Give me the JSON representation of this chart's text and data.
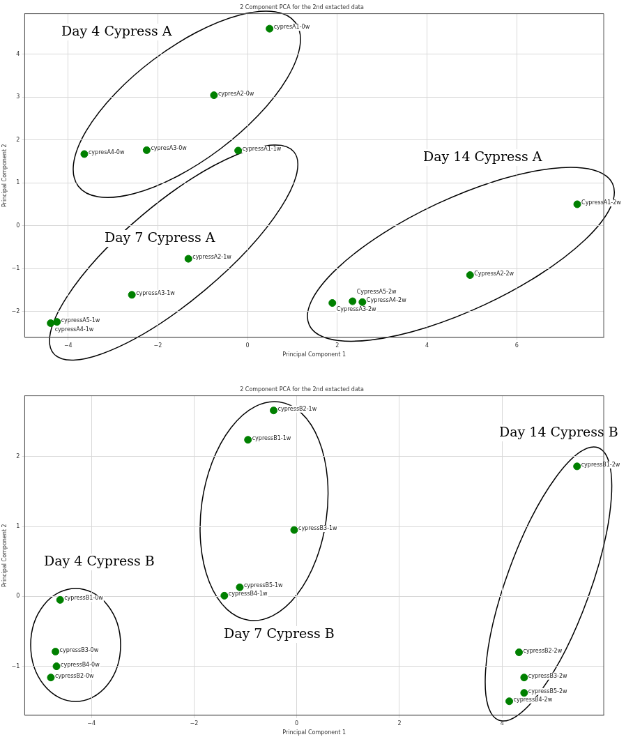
{
  "chart_data": [
    {
      "type": "scatter",
      "title": "2 Component PCA for the 2nd extacted data",
      "xlabel": "Principal Component 1",
      "ylabel": "Principal Component 2",
      "xlim": [
        -4.97,
        7.94
      ],
      "ylim": [
        -2.6,
        4.94
      ],
      "xticks": [
        -4,
        -2,
        0,
        2,
        4,
        6
      ],
      "yticks": [
        -2,
        -1,
        0,
        1,
        2,
        3,
        4
      ],
      "grid": true,
      "marker": "circle",
      "series": [
        {
          "color": "#008000",
          "x": [
            0.49,
            -0.75,
            -2.25,
            -3.64,
            -0.21,
            -1.32,
            -2.58,
            -4.39,
            -4.25,
            7.35,
            4.96,
            1.89,
            2.34,
            2.56
          ],
          "values": [
            4.59,
            3.04,
            1.76,
            1.67,
            1.75,
            -0.77,
            -1.61,
            -2.27,
            -2.24,
            0.5,
            -1.15,
            -1.8,
            -1.76,
            -1.78
          ],
          "value_labels": [
            "cypresA1-0w",
            "cypresA2-0w",
            "cypresA3-0w",
            "cypresA4-0w",
            "cypressA1-1w",
            "cypressA2-1w",
            "cypressA3-1w",
            "cypressA4-1w",
            "cypressA5-1w",
            "CypressA1-2w",
            "CypressA2-2w",
            "CypressA3-2w",
            "CypressA5-2w",
            "CypressA4-2w"
          ]
        }
      ],
      "annotations": [
        "Day 4 Cypress A",
        "Day 7 Cypress A",
        "Day 14 Cypress A"
      ]
    },
    {
      "type": "scatter",
      "title": "2 Component PCA for the 2nd extacted data",
      "xlabel": "Principal Component 1",
      "ylabel": "Principal Component 2",
      "xlim": [
        -5.3,
        5.98
      ],
      "ylim": [
        -1.7,
        2.87
      ],
      "xticks": [
        -4,
        -2,
        0,
        2,
        4
      ],
      "yticks": [
        -1,
        0,
        1,
        2
      ],
      "grid": true,
      "marker": "circle",
      "series": [
        {
          "color": "#008000",
          "x": [
            -4.61,
            -4.7,
            -4.68,
            -4.79,
            -0.45,
            -0.95,
            -0.05,
            -1.11,
            -1.41,
            5.46,
            4.33,
            4.43,
            4.43,
            4.14
          ],
          "values": [
            -0.05,
            -0.79,
            -1.0,
            -1.16,
            2.66,
            2.24,
            0.95,
            0.13,
            0.01,
            1.86,
            -0.8,
            -1.16,
            -1.38,
            -1.5
          ],
          "value_labels": [
            "cypressB1-0w",
            "cypressB3-0w",
            "cypressB4-0w",
            "cypressB2-0w",
            "cypressB2-1w",
            "cypressB1-1w",
            "cypressB3-1w",
            "cypressB5-1w",
            "cypressB4-1w",
            "cypressB1-2w",
            "cypressB2-2w",
            "cypressB3-2w",
            "cypressB5-2w",
            "cypressB4-2w"
          ]
        }
      ],
      "annotations": [
        "Day 4 Cypress B",
        "Day 7 Cypress B",
        "Day 14 Cypress B"
      ]
    }
  ]
}
